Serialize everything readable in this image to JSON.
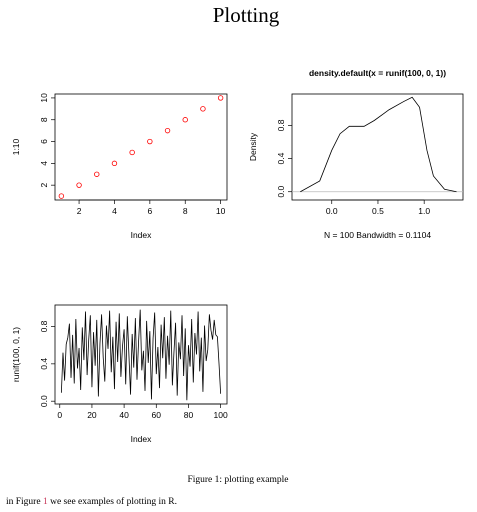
{
  "title": "Plotting",
  "chart_data": [
    {
      "type": "scatter",
      "x": [
        1,
        2,
        3,
        4,
        5,
        6,
        7,
        8,
        9,
        10
      ],
      "values": [
        1,
        2,
        3,
        4,
        5,
        6,
        7,
        8,
        9,
        10
      ],
      "color": "#ff0000",
      "x_label": "Index",
      "y_label": "1:10",
      "xlim": [
        0.64,
        10.36
      ],
      "ylim": [
        0.64,
        10.36
      ],
      "xticks": [
        2,
        4,
        6,
        8,
        10
      ],
      "yticks": [
        2,
        4,
        6,
        8,
        10
      ]
    },
    {
      "type": "line",
      "title": "density.default(x = runif(100, 0, 1))",
      "x": [
        -0.34,
        -0.13,
        0,
        0.09,
        0.19,
        0.35,
        0.46,
        0.62,
        0.78,
        0.87,
        0.95,
        1.03,
        1.1,
        1.22,
        1.35
      ],
      "values": [
        0,
        0.13,
        0.5,
        0.7,
        0.79,
        0.79,
        0.86,
        0.99,
        1.09,
        1.14,
        1.02,
        0.5,
        0.19,
        0.03,
        0
      ],
      "color": "#000000",
      "x_label": "N = 100   Bandwidth = 0.1104",
      "y_label": "Density",
      "xlim": [
        -0.43,
        1.42
      ],
      "ylim": [
        -0.1,
        1.18
      ],
      "xticks": [
        {
          "value": 0,
          "label": "0.0"
        },
        {
          "value": 0.5,
          "label": "0.5"
        },
        {
          "value": 1,
          "label": "1.0"
        }
      ],
      "yticks": [
        {
          "value": 0,
          "label": "0.0"
        },
        {
          "value": 0.4,
          "label": "0.4"
        },
        {
          "value": 0.8,
          "label": "0.8"
        }
      ],
      "zero_line": true
    },
    {
      "type": "line",
      "x": [
        1,
        2,
        3,
        4,
        5,
        6,
        7,
        8,
        9,
        10,
        11,
        12,
        13,
        14,
        15,
        16,
        17,
        18,
        19,
        20,
        21,
        22,
        23,
        24,
        25,
        26,
        27,
        28,
        29,
        30,
        31,
        32,
        33,
        34,
        35,
        36,
        37,
        38,
        39,
        40,
        41,
        42,
        43,
        44,
        45,
        46,
        47,
        48,
        49,
        50,
        51,
        52,
        53,
        54,
        55,
        56,
        57,
        58,
        59,
        60,
        61,
        62,
        63,
        64,
        65,
        66,
        67,
        68,
        69,
        70,
        71,
        72,
        73,
        74,
        75,
        76,
        77,
        78,
        79,
        80,
        81,
        82,
        83,
        84,
        85,
        86,
        87,
        88,
        89,
        90,
        91,
        92,
        93,
        94,
        95,
        96,
        97,
        98,
        99,
        100
      ],
      "values": [
        0.09,
        0.52,
        0.22,
        0.61,
        0.68,
        0.83,
        0.25,
        0.71,
        0.19,
        0.88,
        0.35,
        0.57,
        0.12,
        0.79,
        0.44,
        0.96,
        0.28,
        0.66,
        0.92,
        0.15,
        0.74,
        0.38,
        0.87,
        0.05,
        0.62,
        0.93,
        0.47,
        0.21,
        0.81,
        0.56,
        0.97,
        0.31,
        0.69,
        0.13,
        0.85,
        0.42,
        0.94,
        0.26,
        0.59,
        0.77,
        0.18,
        0.91,
        0.49,
        0.07,
        0.72,
        0.36,
        0.89,
        0.23,
        0.64,
        0.98,
        0.33,
        0.54,
        0.11,
        0.86,
        0.41,
        0.75,
        0.02,
        0.67,
        0.95,
        0.29,
        0.58,
        0.14,
        0.82,
        0.46,
        0.9,
        0.24,
        0.7,
        0.39,
        0.97,
        0.17,
        0.53,
        0.84,
        0.06,
        0.63,
        0.45,
        0.92,
        0.27,
        0.78,
        0.01,
        0.6,
        0.37,
        0.88,
        0.2,
        0.73,
        0.5,
        0.96,
        0.32,
        0.68,
        0.1,
        0.81,
        0.43,
        0.55,
        0.93,
        0.76,
        0.66,
        0.87,
        0.71,
        0.69,
        0.4,
        0.08
      ],
      "color": "#000000",
      "x_label": "Index",
      "y_label": "runif(100, 0, 1)",
      "xlim": [
        -2.96,
        103.96
      ],
      "ylim": [
        -0.03,
        1.03
      ],
      "xticks": [
        0,
        20,
        40,
        60,
        80,
        100
      ],
      "yticks": [
        {
          "value": 0,
          "label": "0.0"
        },
        {
          "value": 0.4,
          "label": "0.4"
        },
        {
          "value": 0.8,
          "label": "0.8"
        }
      ]
    }
  ],
  "caption": "Figure 1: plotting example",
  "body": {
    "before": "in Figure",
    "ref": "1",
    "after": "we see examples of plotting in R."
  }
}
